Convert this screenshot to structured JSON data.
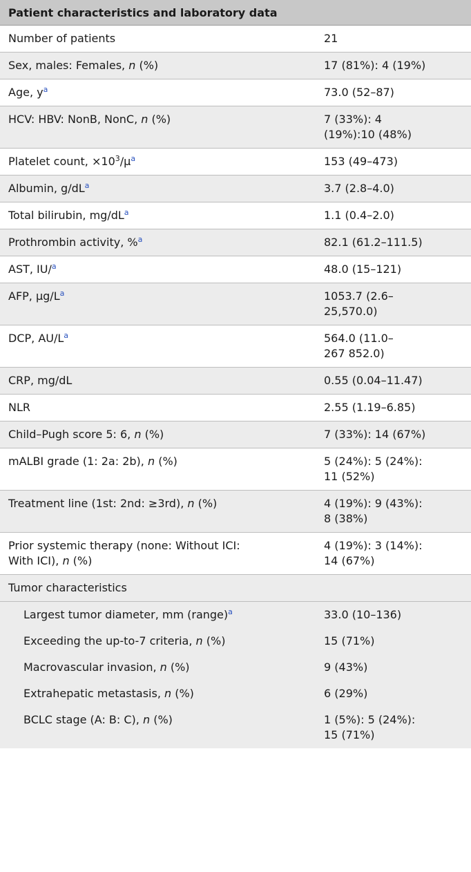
{
  "table": {
    "header": "Patient characteristics and laboratory data",
    "rows": [
      {
        "label": "Number of patients",
        "value": "21"
      },
      {
        "label_parts": [
          "Sex, males: Females, ",
          "n",
          " (%)"
        ],
        "value": "17 (81%): 4 (19%)"
      },
      {
        "label": "Age, y",
        "sup": "a",
        "value": "73.0 (52–87)"
      },
      {
        "label_parts": [
          "HCV: HBV: NonB, NonC, ",
          "n",
          " (%)"
        ],
        "value_lines": [
          "7 (33%): 4",
          "(19%):10 (48%)"
        ]
      },
      {
        "label_parts": [
          "Platelet count, ×10",
          "3",
          "/μ"
        ],
        "sup": "a",
        "value": "153 (49–473)"
      },
      {
        "label": "Albumin, g/dL",
        "sup": "a",
        "value": "3.7 (2.8–4.0)"
      },
      {
        "label": "Total bilirubin, mg/dL",
        "sup": "a",
        "value": "1.1 (0.4–2.0)"
      },
      {
        "label": "Prothrombin activity, %",
        "sup": "a",
        "value": "82.1 (61.2–111.5)"
      },
      {
        "label": "AST, IU/",
        "sup": "a",
        "value": "48.0 (15–121)"
      },
      {
        "label": "AFP, μg/L",
        "sup": "a",
        "value_lines": [
          "1053.7 (2.6–",
          "25,570.0)"
        ]
      },
      {
        "label": "DCP, AU/L",
        "sup": "a",
        "value_lines": [
          "564.0 (11.0–",
          "267 852.0)"
        ]
      },
      {
        "label": "CRP, mg/dL",
        "value": "0.55 (0.04–11.47)"
      },
      {
        "label": "NLR",
        "value": "2.55 (1.19–6.85)"
      },
      {
        "label_parts": [
          "Child–Pugh score 5: 6, ",
          "n",
          " (%)"
        ],
        "value": "7 (33%): 14 (67%)"
      },
      {
        "label_parts": [
          "mALBI grade (1: 2a: 2b), ",
          "n",
          " (%)"
        ],
        "value_lines": [
          "5 (24%): 5 (24%):",
          "11 (52%)"
        ]
      },
      {
        "label_parts": [
          "Treatment line (1st: 2nd: ≥3rd), ",
          "n",
          " (%)"
        ],
        "value_lines": [
          "4 (19%): 9 (43%):",
          "8 (38%)"
        ]
      },
      {
        "label_lines": [
          "Prior systemic therapy (none: Without ICI:",
          "With ICI), "
        ],
        "label_italic": "n",
        "label_tail": " (%)",
        "value_lines": [
          "4 (19%): 3 (14%):",
          "14 (67%)"
        ]
      },
      {
        "label": "Tumor characteristics",
        "value": ""
      }
    ],
    "sub_rows": [
      {
        "label": "Largest tumor diameter, mm (range)",
        "sup": "a",
        "value": "33.0 (10–136)"
      },
      {
        "label_parts": [
          "Exceeding the up-to-7 criteria, ",
          "n",
          " (%)"
        ],
        "value": "15 (71%)"
      },
      {
        "label_parts": [
          "Macrovascular invasion, ",
          "n",
          " (%)"
        ],
        "value": "9 (43%)"
      },
      {
        "label_parts": [
          "Extrahepatic metastasis, ",
          "n",
          " (%)"
        ],
        "value": "6 (29%)"
      },
      {
        "label_parts": [
          "BCLC stage (A: B: C), ",
          "n",
          " (%)"
        ],
        "value_lines": [
          "1 (5%): 5 (24%):",
          "15 (71%)"
        ]
      }
    ]
  }
}
